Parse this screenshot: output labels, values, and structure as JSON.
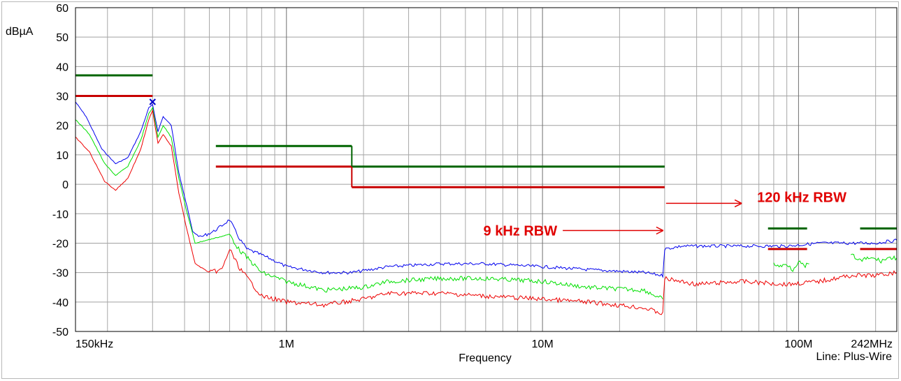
{
  "chart_data": {
    "type": "line",
    "title": "",
    "ylabel": "dBµA",
    "xlabel": "Frequency",
    "footer_note": "Line: Plus-Wire",
    "x_scale": "log",
    "xlim_hz": [
      150000,
      242000000
    ],
    "ylim": [
      -50,
      60
    ],
    "grid": true,
    "y_ticks": [
      {
        "v": 60,
        "label": "60"
      },
      {
        "v": 50,
        "label": "50"
      },
      {
        "v": 40,
        "label": "40"
      },
      {
        "v": 30,
        "label": "30"
      },
      {
        "v": 20,
        "label": "20"
      },
      {
        "v": 10,
        "label": "10"
      },
      {
        "v": 0,
        "label": "0"
      },
      {
        "v": -10,
        "label": "-10"
      },
      {
        "v": -20,
        "label": "-20"
      },
      {
        "v": -30,
        "label": "-30"
      },
      {
        "v": -40,
        "label": "-40"
      },
      {
        "v": -50,
        "label": "-50"
      }
    ],
    "x_ticks": [
      {
        "f": 150000,
        "label": "150kHz"
      },
      {
        "f": 1000000,
        "label": "1M"
      },
      {
        "f": 10000000,
        "label": "10M"
      },
      {
        "f": 100000000,
        "label": "100M"
      },
      {
        "f": 242000000,
        "label": "242MHz"
      }
    ],
    "colors": {
      "blue": "#0000ee",
      "green": "#00e000",
      "red": "#ee0000",
      "dark_green": "#006400",
      "dark_red": "#c80000",
      "annotation": "#e00000"
    },
    "series": [
      {
        "color": "blue",
        "points": [
          [
            150000,
            28
          ],
          [
            165000,
            23
          ],
          [
            190000,
            12
          ],
          [
            215000,
            7
          ],
          [
            240000,
            9
          ],
          [
            270000,
            18
          ],
          [
            290000,
            26
          ],
          [
            300000,
            27
          ],
          [
            315000,
            18
          ],
          [
            330000,
            23
          ],
          [
            355000,
            20
          ],
          [
            380000,
            4
          ],
          [
            410000,
            -8
          ],
          [
            430000,
            -16
          ],
          [
            460000,
            -18
          ],
          [
            520000,
            -16
          ],
          [
            560000,
            -14
          ],
          [
            600000,
            -12
          ],
          [
            650000,
            -18
          ],
          [
            700000,
            -22
          ],
          [
            800000,
            -24
          ],
          [
            900000,
            -26
          ],
          [
            1000000,
            -28
          ],
          [
            1400000,
            -30
          ],
          [
            1800000,
            -30
          ],
          [
            2500000,
            -28
          ],
          [
            4000000,
            -27
          ],
          [
            6000000,
            -27
          ],
          [
            10000000,
            -28
          ],
          [
            15000000,
            -29
          ],
          [
            25000000,
            -30
          ],
          [
            29500000,
            -31
          ],
          [
            30000000,
            -22
          ],
          [
            35000000,
            -21
          ],
          [
            50000000,
            -21
          ],
          [
            70000000,
            -21
          ],
          [
            90000000,
            -21
          ],
          [
            120000000,
            -20
          ],
          [
            160000000,
            -20
          ],
          [
            200000000,
            -20
          ],
          [
            242000000,
            -19
          ]
        ]
      },
      {
        "color": "green",
        "points": [
          [
            150000,
            22
          ],
          [
            170000,
            17
          ],
          [
            195000,
            7
          ],
          [
            215000,
            3
          ],
          [
            240000,
            6
          ],
          [
            270000,
            15
          ],
          [
            290000,
            24
          ],
          [
            300000,
            26
          ],
          [
            315000,
            16
          ],
          [
            330000,
            20
          ],
          [
            355000,
            16
          ],
          [
            380000,
            2
          ],
          [
            410000,
            -10
          ],
          [
            440000,
            -20
          ],
          [
            600000,
            -17
          ],
          [
            650000,
            -22
          ],
          [
            800000,
            -30
          ],
          [
            1000000,
            -33
          ],
          [
            1400000,
            -36
          ],
          [
            2000000,
            -35
          ],
          [
            2500000,
            -33
          ],
          [
            4000000,
            -32
          ],
          [
            6000000,
            -32
          ],
          [
            10000000,
            -33
          ],
          [
            15000000,
            -35
          ],
          [
            25000000,
            -36
          ],
          [
            29500000,
            -39
          ]
        ]
      },
      {
        "color": "red",
        "points": [
          [
            150000,
            16
          ],
          [
            170000,
            11
          ],
          [
            195000,
            1
          ],
          [
            215000,
            -2
          ],
          [
            240000,
            2
          ],
          [
            270000,
            12
          ],
          [
            290000,
            22
          ],
          [
            300000,
            25
          ],
          [
            315000,
            14
          ],
          [
            330000,
            17
          ],
          [
            355000,
            13
          ],
          [
            380000,
            -3
          ],
          [
            410000,
            -16
          ],
          [
            440000,
            -27
          ],
          [
            500000,
            -30
          ],
          [
            560000,
            -29
          ],
          [
            600000,
            -22
          ],
          [
            650000,
            -28
          ],
          [
            800000,
            -38
          ],
          [
            1000000,
            -40
          ],
          [
            1400000,
            -41
          ],
          [
            2000000,
            -39
          ],
          [
            2500000,
            -37
          ],
          [
            4000000,
            -37
          ],
          [
            6000000,
            -38
          ],
          [
            10000000,
            -39
          ],
          [
            15000000,
            -40
          ],
          [
            25000000,
            -42
          ],
          [
            29500000,
            -44
          ],
          [
            30000000,
            -32
          ],
          [
            40000000,
            -34
          ],
          [
            60000000,
            -33
          ],
          [
            90000000,
            -34
          ],
          [
            120000000,
            -33
          ],
          [
            160000000,
            -31
          ],
          [
            200000000,
            -31
          ],
          [
            242000000,
            -30
          ]
        ]
      },
      {
        "color": "green",
        "points": [
          [
            80000000,
            -27
          ],
          [
            85000000,
            -28
          ],
          [
            90000000,
            -27
          ],
          [
            95000000,
            -29
          ],
          [
            100000000,
            -26
          ],
          [
            105000000,
            -28
          ],
          [
            110000000,
            -27
          ]
        ]
      },
      {
        "color": "green",
        "points": [
          [
            160000000,
            -24
          ],
          [
            175000000,
            -26
          ],
          [
            190000000,
            -25
          ],
          [
            210000000,
            -26
          ],
          [
            225000000,
            -25
          ],
          [
            242000000,
            -25
          ]
        ]
      }
    ],
    "limit_lines": [
      {
        "color": "dark_green",
        "f1": 150000,
        "f2": 300000,
        "v": 37
      },
      {
        "color": "dark_red",
        "f1": 150000,
        "f2": 300000,
        "v": 30
      },
      {
        "color": "dark_green",
        "f1": 530000,
        "f2": 1800000,
        "v": 13
      },
      {
        "color": "dark_green",
        "f1": 1800000,
        "f2": 30000000,
        "v": 6
      },
      {
        "color": "dark_red",
        "f1": 530000,
        "f2": 1800000,
        "v": 6
      },
      {
        "color": "dark_red",
        "f1": 1800000,
        "f2": 30000000,
        "v": -1
      },
      {
        "color": "dark_green",
        "f1": 76000000,
        "f2": 108000000,
        "v": -15
      },
      {
        "color": "dark_red",
        "f1": 76000000,
        "f2": 108000000,
        "v": -22
      },
      {
        "color": "dark_green",
        "f1": 174000000,
        "f2": 242000000,
        "v": -15
      },
      {
        "color": "dark_red",
        "f1": 174000000,
        "f2": 242000000,
        "v": -22
      }
    ],
    "marker": {
      "f": 300000,
      "v": 28
    },
    "annotations": [
      {
        "text": "120 kHz RBW",
        "f": 30000000,
        "arrow_to_f": 60000000,
        "v": -6
      },
      {
        "text": "9 kHz RBW",
        "f": 30000000,
        "arrow_from_f": 12000000,
        "v": -15
      }
    ]
  }
}
